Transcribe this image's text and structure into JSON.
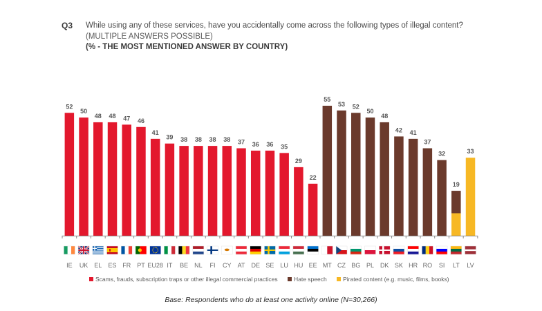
{
  "header": {
    "question_number": "Q3",
    "question_text": "While using any of these services, have you accidentally come across the following types of illegal content?",
    "subtitle": "(MULTIPLE ANSWERS POSSIBLE)",
    "note": "(% - THE MOST MENTIONED ANSWER BY COUNTRY)"
  },
  "footer": {
    "base": "Base: Respondents who do at least one activity online (N=30,266)"
  },
  "chart_data": {
    "type": "bar",
    "title": "While using any of these services, have you accidentally come across the following types of illegal content? (% - THE MOST MENTIONED ANSWER BY COUNTRY)",
    "xlabel": "",
    "ylabel": "%",
    "ylim": [
      0,
      60
    ],
    "grid": false,
    "legend_position": "bottom",
    "colors": {
      "scams": "#e3182d",
      "hate": "#6b3a2c",
      "pirated": "#f7b824"
    },
    "legend": [
      {
        "key": "scams",
        "label": "Scams, frauds, subscription traps or other illegal commercial practices"
      },
      {
        "key": "hate",
        "label": "Hate speech"
      },
      {
        "key": "pirated",
        "label": "Pirated content (e.g. music, films, books)"
      }
    ],
    "categories": [
      "IE",
      "UK",
      "EL",
      "ES",
      "FR",
      "PT",
      "EU28",
      "IT",
      "BE",
      "NL",
      "FI",
      "CY",
      "AT",
      "DE",
      "SE",
      "LU",
      "HU",
      "EE",
      "MT",
      "CZ",
      "BG",
      "PL",
      "DK",
      "SK",
      "HR",
      "RO",
      "SI",
      "LT",
      "LV"
    ],
    "bars": [
      {
        "country": "IE",
        "value": 52,
        "segments": [
          "scams"
        ]
      },
      {
        "country": "UK",
        "value": 50,
        "segments": [
          "scams"
        ]
      },
      {
        "country": "EL",
        "value": 48,
        "segments": [
          "scams"
        ]
      },
      {
        "country": "ES",
        "value": 48,
        "segments": [
          "scams"
        ]
      },
      {
        "country": "FR",
        "value": 47,
        "segments": [
          "scams"
        ]
      },
      {
        "country": "PT",
        "value": 46,
        "segments": [
          "scams"
        ]
      },
      {
        "country": "EU28",
        "value": 41,
        "segments": [
          "scams"
        ]
      },
      {
        "country": "IT",
        "value": 39,
        "segments": [
          "scams"
        ]
      },
      {
        "country": "BE",
        "value": 38,
        "segments": [
          "scams"
        ]
      },
      {
        "country": "NL",
        "value": 38,
        "segments": [
          "scams"
        ]
      },
      {
        "country": "FI",
        "value": 38,
        "segments": [
          "scams"
        ]
      },
      {
        "country": "CY",
        "value": 38,
        "segments": [
          "scams"
        ]
      },
      {
        "country": "AT",
        "value": 37,
        "segments": [
          "scams"
        ]
      },
      {
        "country": "DE",
        "value": 36,
        "segments": [
          "scams"
        ]
      },
      {
        "country": "SE",
        "value": 36,
        "segments": [
          "scams"
        ]
      },
      {
        "country": "LU",
        "value": 35,
        "segments": [
          "scams"
        ]
      },
      {
        "country": "HU",
        "value": 29,
        "segments": [
          "scams"
        ]
      },
      {
        "country": "EE",
        "value": 22,
        "segments": [
          "scams"
        ]
      },
      {
        "country": "MT",
        "value": 55,
        "segments": [
          "hate"
        ]
      },
      {
        "country": "CZ",
        "value": 53,
        "segments": [
          "hate"
        ]
      },
      {
        "country": "BG",
        "value": 52,
        "segments": [
          "hate"
        ]
      },
      {
        "country": "PL",
        "value": 50,
        "segments": [
          "hate"
        ]
      },
      {
        "country": "DK",
        "value": 48,
        "segments": [
          "hate"
        ]
      },
      {
        "country": "SK",
        "value": 42,
        "segments": [
          "hate"
        ]
      },
      {
        "country": "HR",
        "value": 41,
        "segments": [
          "hate"
        ]
      },
      {
        "country": "RO",
        "value": 37,
        "segments": [
          "hate"
        ]
      },
      {
        "country": "SI",
        "value": 32,
        "segments": [
          "hate"
        ]
      },
      {
        "country": "LT",
        "value": 19,
        "segments": [
          "pirated",
          "hate"
        ]
      },
      {
        "country": "LV",
        "value": 33,
        "segments": [
          "pirated"
        ]
      }
    ],
    "series": [
      {
        "name": "Scams, frauds, subscription traps or other illegal commercial practices",
        "values": [
          52,
          50,
          48,
          48,
          47,
          46,
          41,
          39,
          38,
          38,
          38,
          38,
          37,
          36,
          36,
          35,
          29,
          22,
          null,
          null,
          null,
          null,
          null,
          null,
          null,
          null,
          null,
          null,
          null
        ]
      },
      {
        "name": "Hate speech",
        "values": [
          null,
          null,
          null,
          null,
          null,
          null,
          null,
          null,
          null,
          null,
          null,
          null,
          null,
          null,
          null,
          null,
          null,
          null,
          55,
          53,
          52,
          50,
          48,
          42,
          41,
          37,
          32,
          19,
          null
        ]
      },
      {
        "name": "Pirated content (e.g. music, films, books)",
        "values": [
          null,
          null,
          null,
          null,
          null,
          null,
          null,
          null,
          null,
          null,
          null,
          null,
          null,
          null,
          null,
          null,
          null,
          null,
          null,
          null,
          null,
          null,
          null,
          null,
          null,
          null,
          null,
          19,
          33
        ]
      }
    ],
    "flags": {
      "IE": {
        "type": "v",
        "colors": [
          "#169b62",
          "#ffffff",
          "#ff883e"
        ]
      },
      "UK": {
        "type": "uk",
        "colors": [
          "#012169",
          "#ffffff",
          "#c8102e"
        ]
      },
      "EL": {
        "type": "gr",
        "colors": [
          "#0d5eaf",
          "#ffffff"
        ]
      },
      "ES": {
        "type": "es",
        "colors": [
          "#c60b1e",
          "#ffc400"
        ]
      },
      "FR": {
        "type": "v",
        "colors": [
          "#0055a4",
          "#ffffff",
          "#ef4135"
        ]
      },
      "PT": {
        "type": "pt",
        "colors": [
          "#006600",
          "#ff0000",
          "#ffcc00"
        ]
      },
      "EU28": {
        "type": "eu",
        "colors": [
          "#003399",
          "#ffcc00"
        ]
      },
      "IT": {
        "type": "v",
        "colors": [
          "#009246",
          "#ffffff",
          "#ce2b37"
        ]
      },
      "BE": {
        "type": "v",
        "colors": [
          "#000000",
          "#fdda24",
          "#ef3340"
        ]
      },
      "NL": {
        "type": "h",
        "colors": [
          "#ae1c28",
          "#ffffff",
          "#21468b"
        ]
      },
      "FI": {
        "type": "nordic",
        "colors": [
          "#ffffff",
          "#003580"
        ]
      },
      "CY": {
        "type": "cy",
        "colors": [
          "#ffffff",
          "#d57800"
        ]
      },
      "AT": {
        "type": "h",
        "colors": [
          "#ed2939",
          "#ffffff",
          "#ed2939"
        ]
      },
      "DE": {
        "type": "h",
        "colors": [
          "#000000",
          "#dd0000",
          "#ffce00"
        ]
      },
      "SE": {
        "type": "nordic",
        "colors": [
          "#006aa7",
          "#fecc00"
        ]
      },
      "LU": {
        "type": "h",
        "colors": [
          "#ed2939",
          "#ffffff",
          "#00a1de"
        ]
      },
      "HU": {
        "type": "h",
        "colors": [
          "#ce2939",
          "#ffffff",
          "#477050"
        ]
      },
      "EE": {
        "type": "h",
        "colors": [
          "#0072ce",
          "#000000",
          "#ffffff"
        ]
      },
      "MT": {
        "type": "v2",
        "colors": [
          "#ffffff",
          "#cf142b"
        ]
      },
      "CZ": {
        "type": "cz",
        "colors": [
          "#ffffff",
          "#d7141a",
          "#11457e"
        ]
      },
      "BG": {
        "type": "h",
        "colors": [
          "#ffffff",
          "#00966e",
          "#d62612"
        ]
      },
      "PL": {
        "type": "h2",
        "colors": [
          "#ffffff",
          "#dc143c"
        ]
      },
      "DK": {
        "type": "nordic",
        "colors": [
          "#c8102e",
          "#ffffff"
        ]
      },
      "SK": {
        "type": "h",
        "colors": [
          "#ffffff",
          "#0b4ea2",
          "#ee1c25"
        ]
      },
      "HR": {
        "type": "h",
        "colors": [
          "#ff0000",
          "#ffffff",
          "#171796"
        ]
      },
      "RO": {
        "type": "v",
        "colors": [
          "#002b7f",
          "#fcd116",
          "#ce1126"
        ]
      },
      "SI": {
        "type": "h",
        "colors": [
          "#ffffff",
          "#0000ff",
          "#ff0000"
        ]
      },
      "LT": {
        "type": "h",
        "colors": [
          "#fdb913",
          "#006a44",
          "#c1272d"
        ]
      },
      "LV": {
        "type": "lv",
        "colors": [
          "#9e3039",
          "#ffffff"
        ]
      }
    }
  }
}
